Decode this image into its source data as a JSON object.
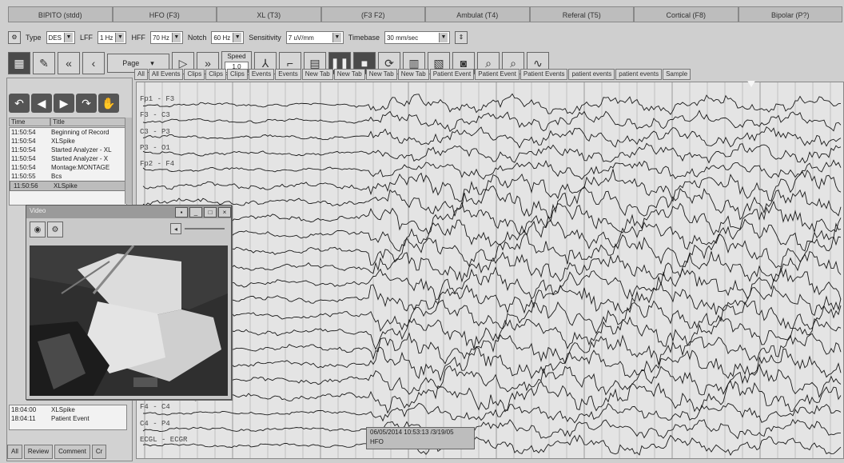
{
  "montage_tabs": [
    "BIPITO (stdd)",
    "HFO (F3)",
    "XL (T3)",
    "(F3 F2)",
    "Ambulat (T4)",
    "Referal (T5)",
    "Cortical (F8)",
    "Bipolar (P?)"
  ],
  "settings": {
    "type_label": "Type",
    "type_value": "DES",
    "lff_label": "LFF",
    "lff_value": "1 Hz",
    "hff_label": "HFF",
    "hff_value": "70 Hz",
    "notch_label": "Notch",
    "notch_value": "60 Hz",
    "sensitivity_label": "Sensitivity",
    "sensitivity_value": "7 uV/mm",
    "timebase_label": "Timebase",
    "timebase_value": "30 mm/sec"
  },
  "toolbar": {
    "page_label": "Page",
    "speed_label": "Speed",
    "speed_value": "1.0"
  },
  "event_list": {
    "columns": [
      "Time",
      "Title"
    ],
    "rows": [
      {
        "time": "11:50:54",
        "title": "Beginning of Record"
      },
      {
        "time": "11:50:54",
        "title": "XLSpike"
      },
      {
        "time": "11:50:54",
        "title": "Started Analyzer - XL"
      },
      {
        "time": "11:50:54",
        "title": "Started Analyzer - X"
      },
      {
        "time": "11:50:54",
        "title": "Montage:MONTAGE"
      },
      {
        "time": "11:50:55",
        "title": "Bcs"
      },
      {
        "time": "11:50:56",
        "title": "XLSpike"
      }
    ],
    "bottom_rows": [
      {
        "time": "18:04:00",
        "title": "XLSpike"
      },
      {
        "time": "18:04:11",
        "title": "Patient Event"
      }
    ],
    "bottom_tabs": [
      "All",
      "Review",
      "Comment",
      "Cr"
    ]
  },
  "eeg_tabs": [
    "All",
    "All Events",
    "Clips",
    "Clips",
    "Clips",
    "Events",
    "Events",
    "New Tab",
    "New Tab",
    "New Tab",
    "New Tab",
    "Patient Event",
    "Patient Event",
    "Patient Events",
    "patient events",
    "patient events",
    "Sample"
  ],
  "channels": [
    "Fp1 - F3",
    "F3 - C3",
    "C3 - P3",
    "P3 - O1",
    "Fp2 - F4",
    "",
    "",
    "",
    "",
    "",
    "",
    "",
    "",
    "",
    "",
    "",
    "",
    "",
    "",
    "F4 - C4",
    "C4 - P4",
    "ECGL - ECGR"
  ],
  "hfo_label": {
    "line1": "06/05/2014 10:53:13 /3/19/05",
    "line2": "HFO"
  },
  "video_window": {
    "title": "Video"
  },
  "colors": {
    "background": "#cfcfcf",
    "trace": "#1a1a1a",
    "grid": "#9a9a9a"
  }
}
